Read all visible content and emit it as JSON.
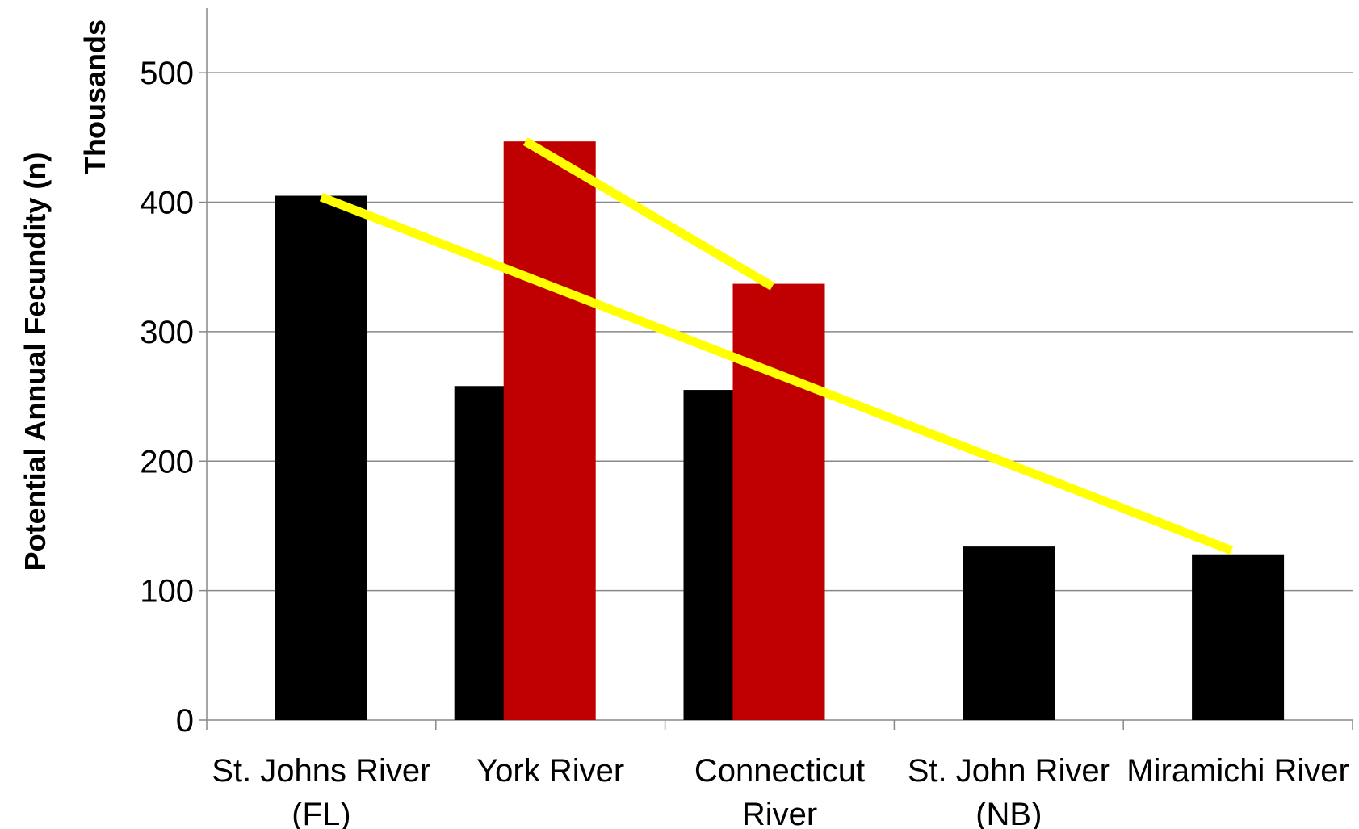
{
  "chart_data": {
    "type": "bar",
    "title": "",
    "xlabel": "",
    "ylabel": "Potential Annual Fecundity (n)",
    "yunit_label": "Thousands",
    "ylim": [
      0,
      550
    ],
    "yticks": [
      0,
      100,
      200,
      300,
      400,
      500
    ],
    "grid": true,
    "legend": "none",
    "categories": [
      [
        "St. Johns River",
        "(FL)"
      ],
      [
        "York River"
      ],
      [
        "Connecticut",
        "River"
      ],
      [
        "St. John River",
        "(NB)"
      ],
      [
        "Miramichi River"
      ]
    ],
    "series": [
      {
        "color": "#000000",
        "values": [
          405,
          258,
          255,
          134,
          128
        ]
      },
      {
        "color": "#c00000",
        "values": [
          null,
          447,
          337,
          null,
          null
        ]
      }
    ],
    "trend_lines": [
      {
        "color": "#ffff00",
        "points": [
          [
            0,
            404
          ],
          [
            4,
            131
          ]
        ]
      },
      {
        "color": "#ffff00",
        "points": [
          [
            1,
            447
          ],
          [
            2,
            335
          ]
        ]
      }
    ],
    "colors": {
      "gridline": "#888888",
      "axis": "#888888"
    }
  }
}
